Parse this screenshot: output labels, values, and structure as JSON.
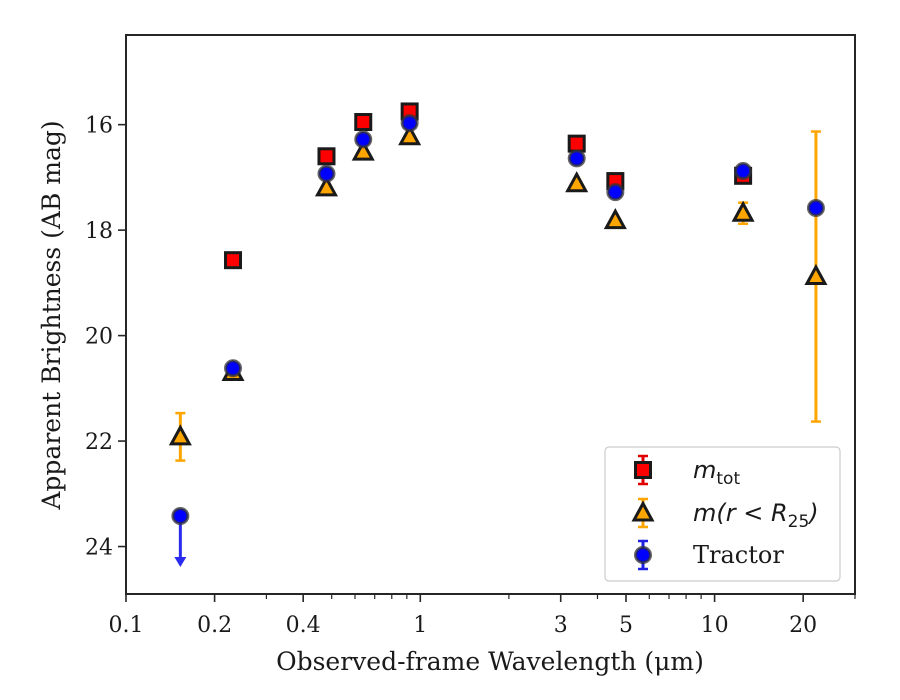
{
  "chart_data": {
    "type": "scatter",
    "xlabel": "Observed-frame Wavelength (μm)",
    "ylabel": "Apparent Brightness (AB mag)",
    "xscale": "log",
    "xlim": [
      0.1,
      30
    ],
    "ylim": [
      24.9,
      14.3
    ],
    "y_inverted": true,
    "x_major_ticks": [
      {
        "value": 0.1,
        "label": "0.1"
      },
      {
        "value": 0.2,
        "label": "0.2"
      },
      {
        "value": 0.4,
        "label": "0.4"
      },
      {
        "value": 1,
        "label": "1"
      },
      {
        "value": 3,
        "label": "3"
      },
      {
        "value": 5,
        "label": "5"
      },
      {
        "value": 10,
        "label": "10"
      },
      {
        "value": 20,
        "label": "20"
      }
    ],
    "x_minor_ticks": [
      0.3,
      0.5,
      0.6,
      0.7,
      0.8,
      0.9,
      2,
      4,
      6,
      7,
      8,
      9,
      30
    ],
    "y_ticks": [
      {
        "value": 16,
        "label": "16"
      },
      {
        "value": 18,
        "label": "18"
      },
      {
        "value": 20,
        "label": "20"
      },
      {
        "value": 22,
        "label": "22"
      },
      {
        "value": 24,
        "label": "24"
      }
    ],
    "legend_position": "lower-right",
    "series": [
      {
        "key": "mtot",
        "legend_math": "m",
        "legend_sub": "tot",
        "legend_rest": "",
        "marker": "square",
        "face_color": "#ff0000",
        "edge_color": "#1a1a1a",
        "err_color": "#e00000",
        "points": [
          {
            "x": 0.231,
            "y": 18.57,
            "err": 0
          },
          {
            "x": 0.48,
            "y": 16.6,
            "err": 0
          },
          {
            "x": 0.64,
            "y": 15.95,
            "err": 0
          },
          {
            "x": 0.92,
            "y": 15.75,
            "err": 0
          },
          {
            "x": 3.4,
            "y": 16.36,
            "err": 0
          },
          {
            "x": 4.6,
            "y": 17.07,
            "err": 0
          },
          {
            "x": 12.5,
            "y": 16.97,
            "err": 0.08
          }
        ]
      },
      {
        "key": "mr25",
        "legend_math": "m",
        "legend_sub": "25",
        "legend_rest": "(r < R",
        "marker": "triangle",
        "face_color": "#ffa500",
        "edge_color": "#1a1a1a",
        "err_color": "#ffa500",
        "points": [
          {
            "x": 0.153,
            "y": 21.92,
            "err": 0.45
          },
          {
            "x": 0.231,
            "y": 20.7,
            "err": 0
          },
          {
            "x": 0.48,
            "y": 17.2,
            "err": 0
          },
          {
            "x": 0.64,
            "y": 16.52,
            "err": 0
          },
          {
            "x": 0.92,
            "y": 16.23,
            "err": 0
          },
          {
            "x": 3.4,
            "y": 17.12,
            "err": 0
          },
          {
            "x": 4.6,
            "y": 17.82,
            "err": 0
          },
          {
            "x": 12.5,
            "y": 17.68,
            "err": 0.2
          },
          {
            "x": 22.1,
            "y": 18.88,
            "err": 2.75
          }
        ]
      },
      {
        "key": "tractor",
        "legend_math": "",
        "legend_sub": "",
        "legend_rest": "Tractor",
        "marker": "circle",
        "face_color": "#0000ff",
        "edge_color": "#333333",
        "err_color": "#2020e0",
        "points": [
          {
            "x": 0.153,
            "y": 23.42,
            "err": 0,
            "upper_limit": true,
            "arrow_to": 24.35
          },
          {
            "x": 0.231,
            "y": 20.62,
            "err": 0
          },
          {
            "x": 0.48,
            "y": 16.93,
            "err": 0
          },
          {
            "x": 0.64,
            "y": 16.28,
            "err": 0
          },
          {
            "x": 0.92,
            "y": 15.97,
            "err": 0
          },
          {
            "x": 3.4,
            "y": 16.64,
            "err": 0
          },
          {
            "x": 4.6,
            "y": 17.28,
            "err": 0
          },
          {
            "x": 12.5,
            "y": 16.88,
            "err": 0
          },
          {
            "x": 22.1,
            "y": 17.58,
            "err": 0
          }
        ]
      }
    ]
  }
}
